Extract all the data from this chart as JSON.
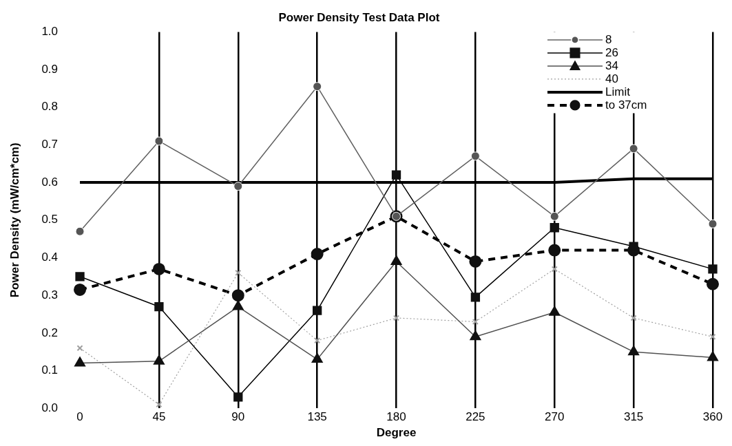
{
  "chart_data": {
    "type": "line",
    "title": "Power Density Test Data Plot",
    "xlabel": "Degree",
    "ylabel": "Power Density (mW/cm*cm)",
    "x": [
      0,
      45,
      90,
      135,
      180,
      225,
      270,
      315,
      360
    ],
    "series": [
      {
        "name": "8",
        "color": "#606060",
        "marker": "circle",
        "line_style": "solid",
        "values": [
          0.47,
          0.71,
          0.59,
          0.855,
          0.51,
          0.67,
          0.51,
          0.69,
          0.49
        ]
      },
      {
        "name": "26",
        "color": "#000000",
        "marker": "square",
        "line_style": "solid",
        "values": [
          0.35,
          0.27,
          0.03,
          0.26,
          0.62,
          0.295,
          0.48,
          0.43,
          0.37
        ]
      },
      {
        "name": "34",
        "color": "#505050",
        "marker": "triangle",
        "line_style": "solid",
        "values": [
          0.12,
          0.125,
          0.27,
          0.13,
          0.39,
          0.19,
          0.255,
          0.15,
          0.135
        ]
      },
      {
        "name": "40",
        "color": "#a0a0a0",
        "marker": "cross",
        "line_style": "dotted",
        "values": [
          0.16,
          0.01,
          0.36,
          0.18,
          0.24,
          0.23,
          0.37,
          0.24,
          0.19
        ]
      },
      {
        "name": "Limit",
        "color": "#000000",
        "marker": "none",
        "line_style": "solid",
        "values": [
          0.6,
          0.6,
          0.6,
          0.6,
          0.6,
          0.6,
          0.6,
          0.61,
          0.61
        ]
      },
      {
        "name": "to 37cm",
        "color": "#000000",
        "marker": "circle",
        "line_style": "dashed",
        "values": [
          0.315,
          0.37,
          0.3,
          0.41,
          0.51,
          0.39,
          0.42,
          0.42,
          0.33
        ]
      }
    ],
    "xlim": [
      0,
      360
    ],
    "xticks": [
      0,
      45,
      90,
      135,
      180,
      225,
      270,
      315,
      360
    ],
    "ylim": [
      0,
      1
    ],
    "yticks": [
      {
        "value": 0,
        "label": "0.0"
      },
      0.1,
      0.2,
      0.3,
      0.4,
      0.5,
      0.6,
      0.7,
      0.8,
      0.9,
      {
        "value": 1,
        "label": "1.0"
      }
    ],
    "grid": "x",
    "legend": "top right"
  }
}
